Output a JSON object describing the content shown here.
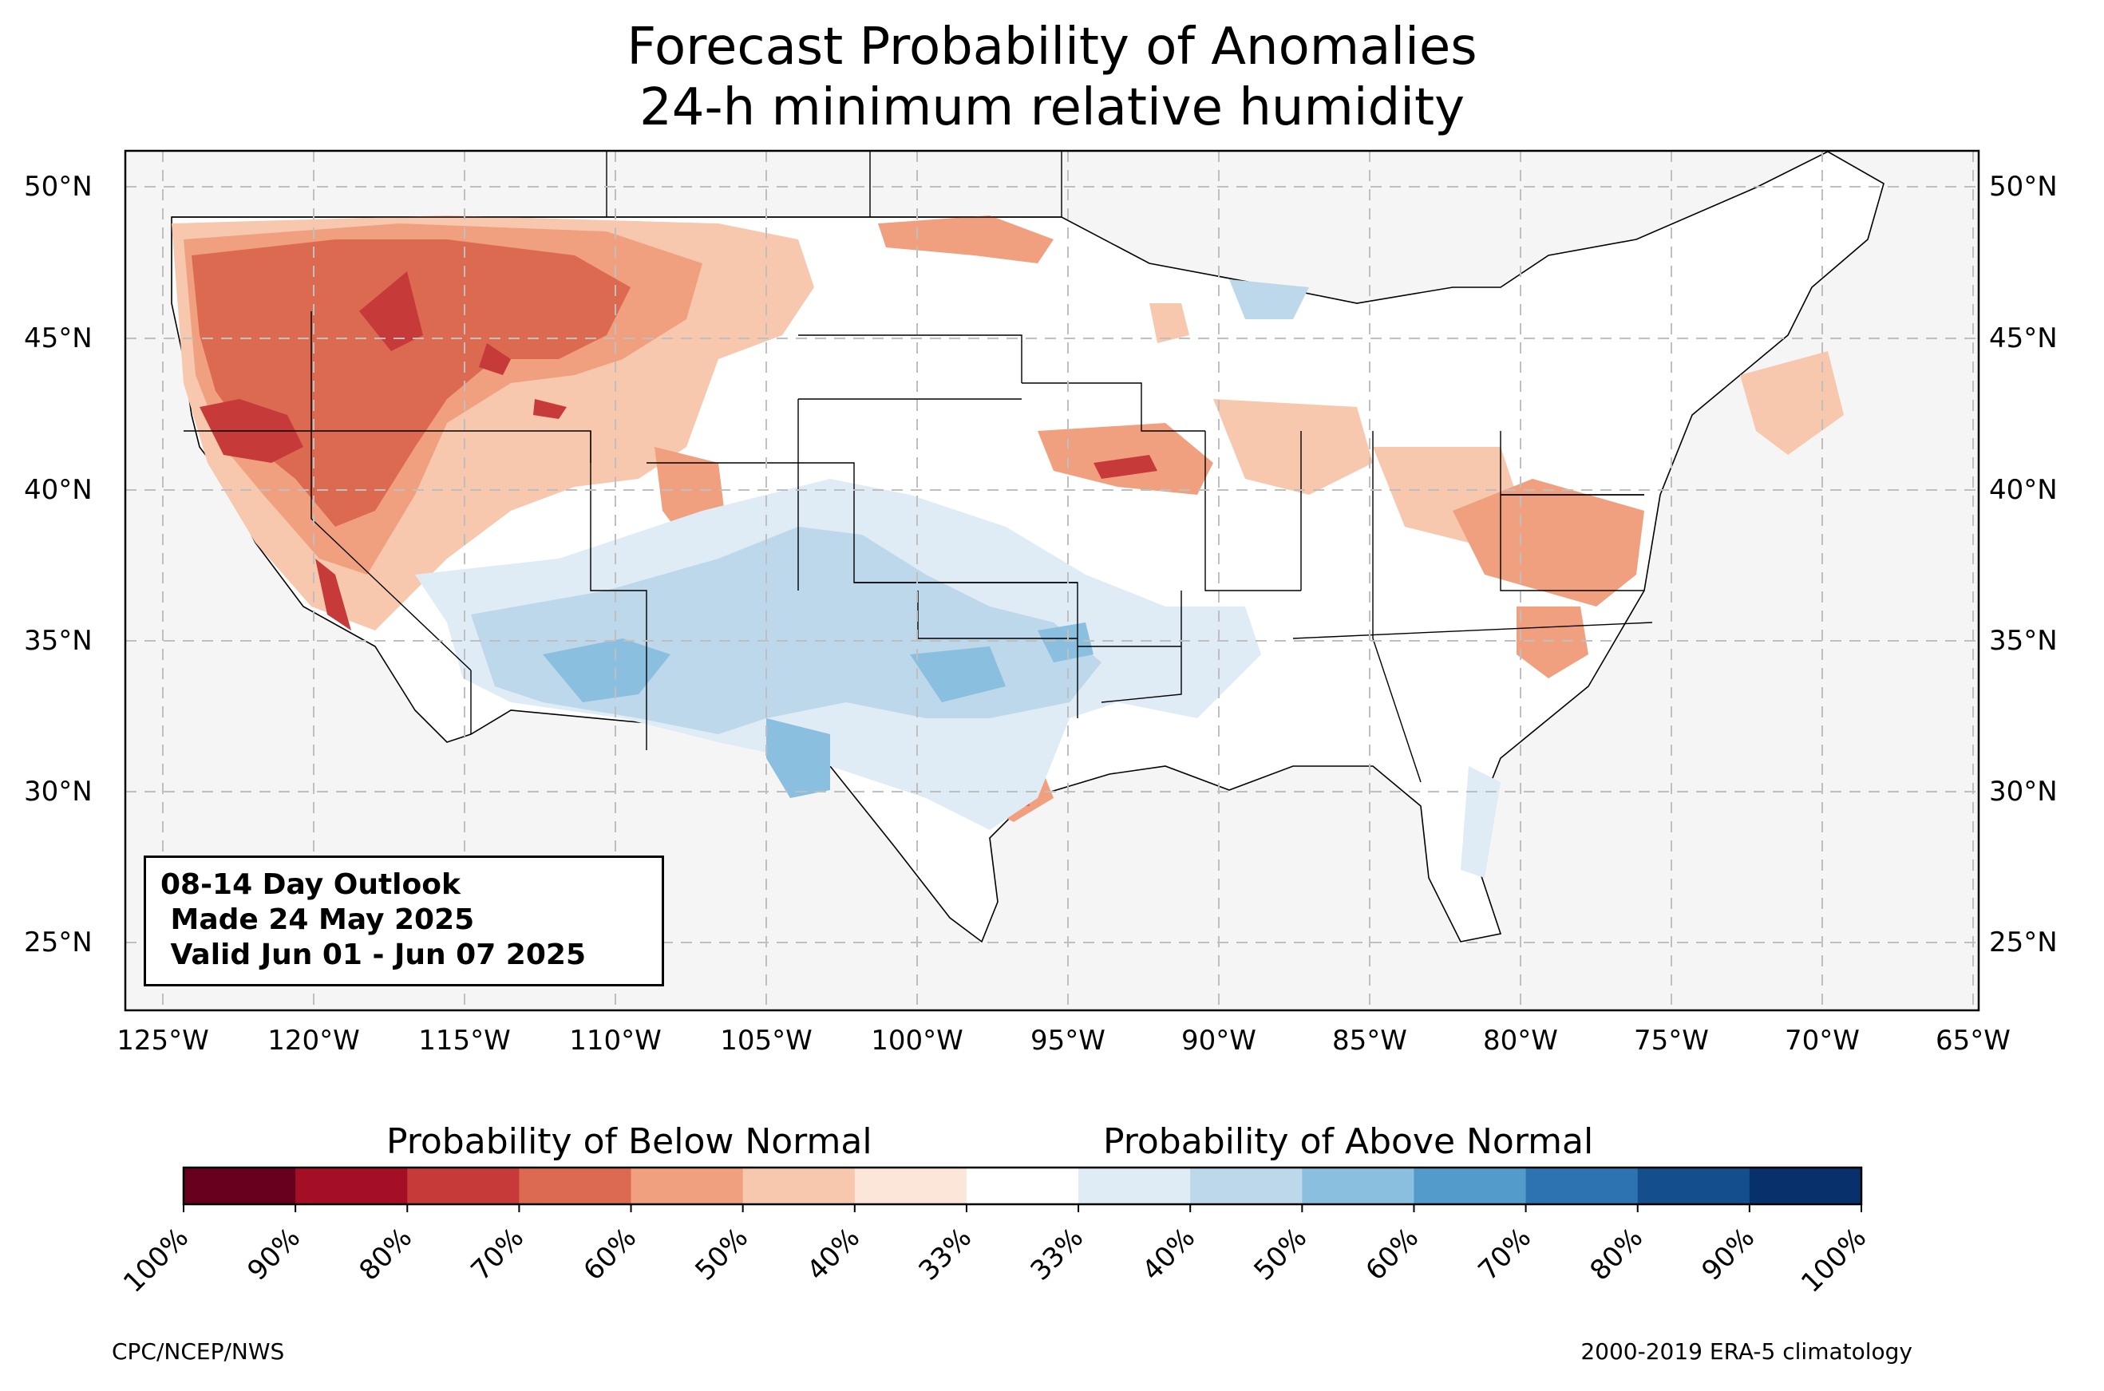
{
  "title": "Forecast Probability of Anomalies",
  "subtitle": "24-h minimum relative humidity",
  "outlook": {
    "line1": "08-14 Day Outlook",
    "line2": " Made 24 May 2025",
    "line3": " Valid Jun 01 - Jun 07 2025"
  },
  "lat_labels": [
    "50°N",
    "45°N",
    "40°N",
    "35°N",
    "30°N",
    "25°N"
  ],
  "lon_labels": [
    "125°W",
    "120°W",
    "115°W",
    "110°W",
    "105°W",
    "100°W",
    "95°W",
    "90°W",
    "85°W",
    "80°W",
    "75°W",
    "70°W",
    "65°W"
  ],
  "colorbar": {
    "below_title": "Probability of Below Normal",
    "above_title": "Probability of Above Normal",
    "ticks": [
      "100%",
      "90%",
      "80%",
      "70%",
      "60%",
      "50%",
      "40%",
      "33%",
      "33%",
      "40%",
      "50%",
      "60%",
      "70%",
      "80%",
      "90%",
      "100%"
    ],
    "colors": [
      "#67001f",
      "#a50f25",
      "#c73a3a",
      "#dc6a50",
      "#f1a07f",
      "#f8c8ae",
      "#fbe6d9",
      "#ffffff",
      "#dfebf5",
      "#bcd8ea",
      "#8bbfdf",
      "#539bca",
      "#2d73b2",
      "#154e8c",
      "#08306b"
    ]
  },
  "footer": {
    "credit": "CPC/NCEP/NWS",
    "climatology": "2000-2019 ERA-5 climatology"
  }
}
